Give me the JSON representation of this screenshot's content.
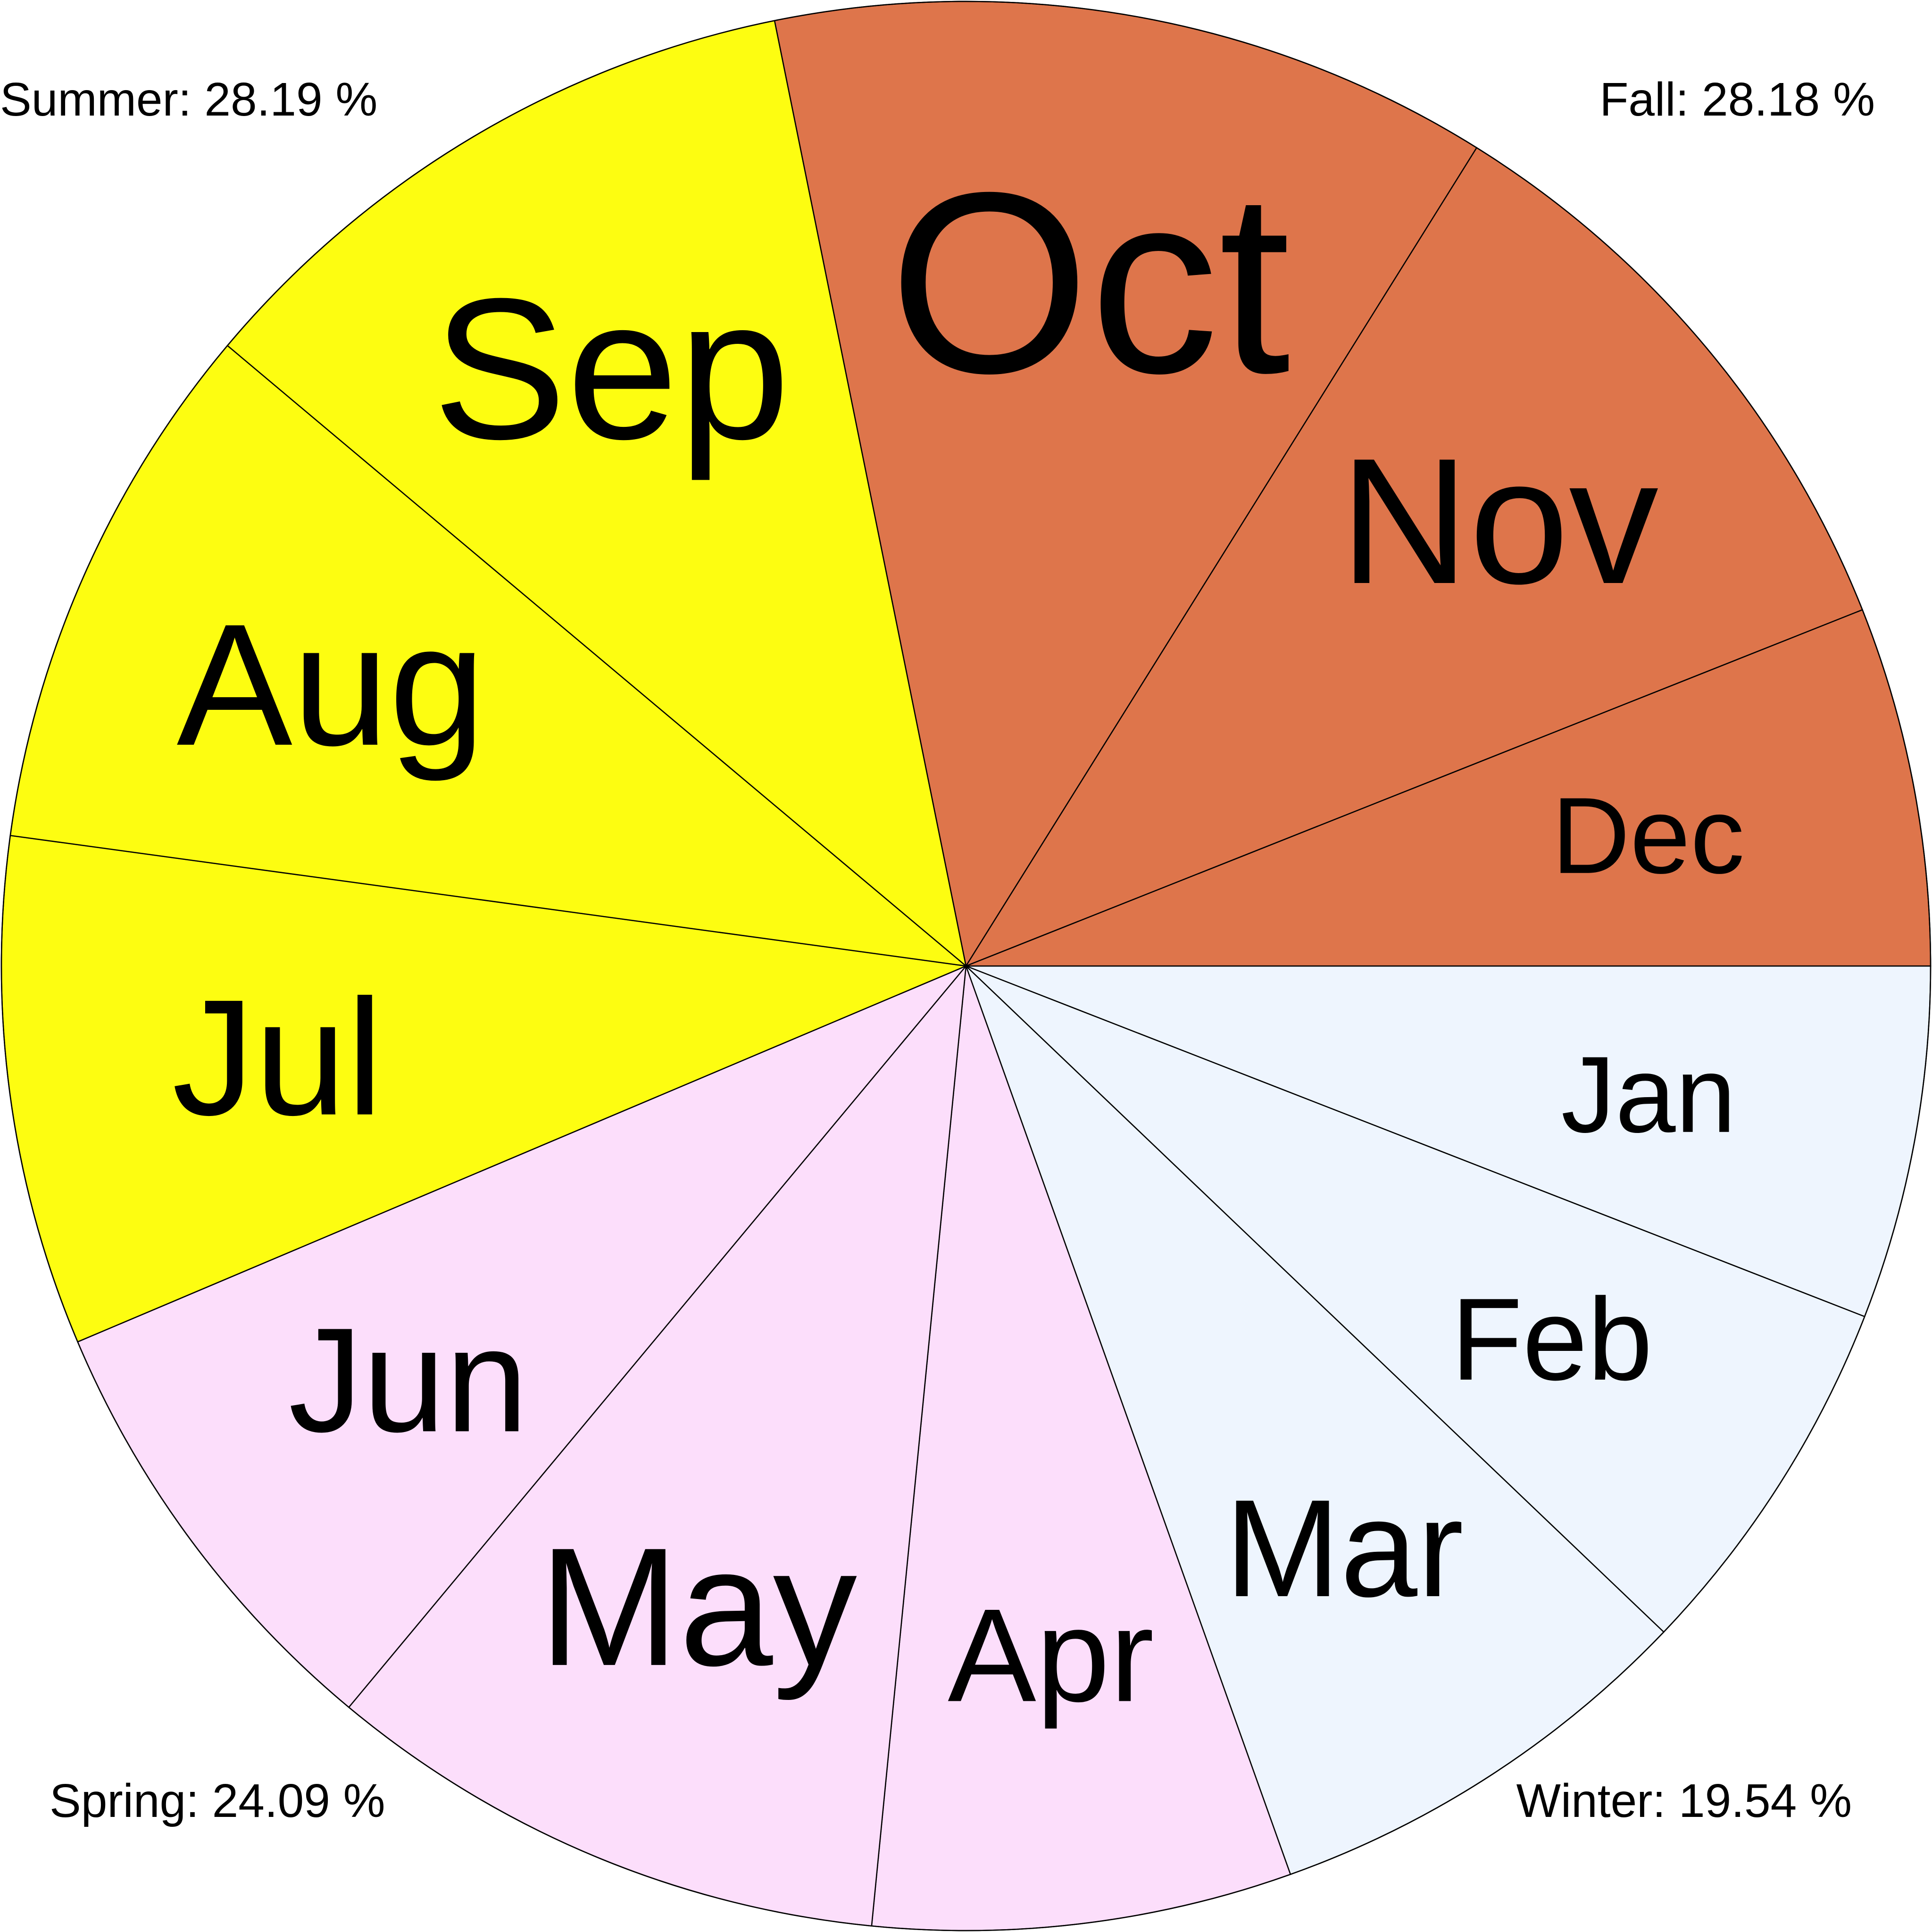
{
  "chart_data": {
    "type": "pie",
    "title": "",
    "start": "east (3 o'clock), clockwise",
    "slices": [
      {
        "label": "Jan",
        "value": 5.92,
        "season": "Winter",
        "label_scale": 1.0
      },
      {
        "label": "Feb",
        "value": 6.21,
        "season": "Winter",
        "label_scale": 1.08
      },
      {
        "label": "Mar",
        "value": 7.41,
        "season": "Winter",
        "label_scale": 1.28
      },
      {
        "label": "Apr",
        "value": 7.02,
        "season": "Spring",
        "label_scale": 1.22
      },
      {
        "label": "May",
        "value": 9.49,
        "season": "Spring",
        "label_scale": 1.55
      },
      {
        "label": "Jun",
        "value": 7.58,
        "season": "Spring",
        "label_scale": 1.37
      },
      {
        "label": "Jul",
        "value": 8.53,
        "season": "Summer",
        "label_scale": 1.52
      },
      {
        "label": "Aug",
        "value": 8.96,
        "season": "Summer",
        "label_scale": 1.6
      },
      {
        "label": "Sep",
        "value": 10.7,
        "season": "Summer",
        "label_scale": 1.85
      },
      {
        "label": "Oct",
        "value": 12.06,
        "season": "Fall",
        "label_scale": 2.38
      },
      {
        "label": "Nov",
        "value": 10.1,
        "season": "Fall",
        "label_scale": 1.65
      },
      {
        "label": "Dec",
        "value": 6.02,
        "season": "Fall",
        "label_scale": 1.0
      }
    ],
    "seasons": [
      {
        "name": "Winter",
        "color": "#EEF5FE",
        "text": "Winter: 19.54 %",
        "corner": "bottom-right"
      },
      {
        "name": "Spring",
        "color": "#FCDEFB",
        "text": "Spring: 24.09 %",
        "corner": "bottom-left"
      },
      {
        "name": "Summer",
        "color": "#FDFD11",
        "text": "Summer: 28.19 %",
        "corner": "top-left"
      },
      {
        "name": "Fall",
        "color": "#DE754B",
        "text": "Fall: 28.18 %",
        "corner": "top-right"
      }
    ]
  }
}
